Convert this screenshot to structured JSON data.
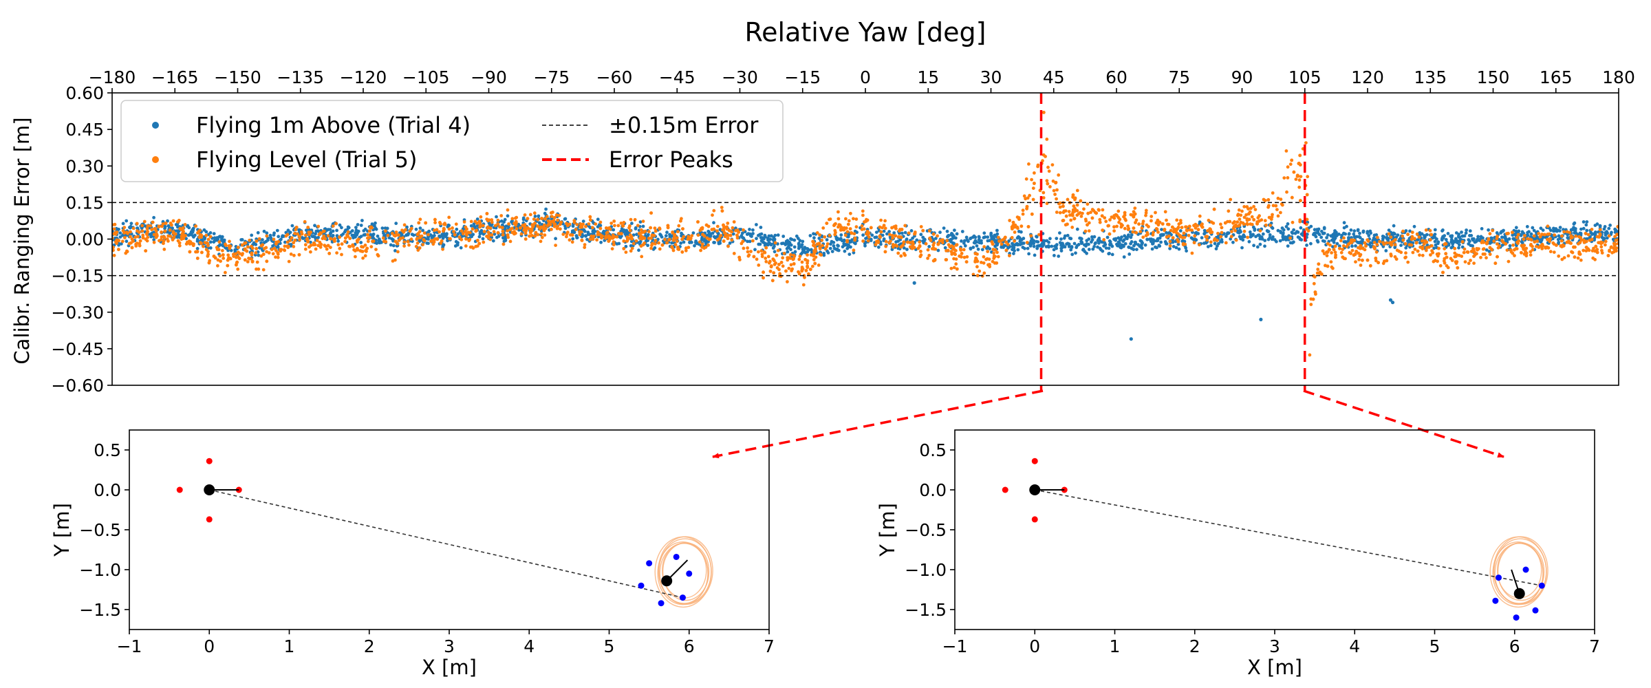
{
  "chart_data": [
    {
      "type": "scatter",
      "title": "Relative Yaw [deg]",
      "xlabel": "",
      "ylabel": "Calibr. Ranging Error [m]",
      "xlim": [
        -180,
        180
      ],
      "ylim": [
        -0.6,
        0.6
      ],
      "xticks": [
        "−180",
        "−165",
        "−150",
        "−135",
        "−120",
        "−105",
        "−90",
        "−75",
        "−60",
        "−45",
        "−30",
        "−15",
        "0",
        "15",
        "30",
        "45",
        "60",
        "75",
        "90",
        "105",
        "120",
        "135",
        "150",
        "165",
        "180"
      ],
      "yticks": [
        "0.60",
        "0.45",
        "0.30",
        "0.15",
        "0.00",
        "−0.15",
        "−0.30",
        "−0.45",
        "−0.60"
      ],
      "legend_position": "top-left",
      "series": [
        {
          "name": "Flying 1m Above (Trial 4)",
          "color": "#1f77b4",
          "trend": [
            [
              -180,
              0.02
            ],
            [
              -165,
              0.04
            ],
            [
              -150,
              -0.04
            ],
            [
              -135,
              0.02
            ],
            [
              -120,
              0.02
            ],
            [
              -105,
              0.0
            ],
            [
              -90,
              0.04
            ],
            [
              -75,
              0.06
            ],
            [
              -60,
              0.02
            ],
            [
              -45,
              0.0
            ],
            [
              -30,
              0.02
            ],
            [
              -15,
              -0.04
            ],
            [
              0,
              0.0
            ],
            [
              15,
              0.0
            ],
            [
              30,
              -0.01
            ],
            [
              45,
              -0.02
            ],
            [
              60,
              -0.02
            ],
            [
              75,
              0.0
            ],
            [
              90,
              0.02
            ],
            [
              105,
              0.02
            ],
            [
              120,
              0.0
            ],
            [
              135,
              0.0
            ],
            [
              150,
              0.0
            ],
            [
              165,
              0.02
            ],
            [
              180,
              0.02
            ]
          ],
          "spread": 0.04,
          "outliers": [
            [
              11.7,
              -0.18
            ],
            [
              63.5,
              -0.41
            ],
            [
              94.5,
              -0.33
            ],
            [
              125.5,
              -0.25
            ],
            [
              126,
              -0.26
            ]
          ]
        },
        {
          "name": "Flying Level (Trial 5)",
          "color": "#ff7f0e",
          "trend": [
            [
              -180,
              0.0
            ],
            [
              -165,
              0.02
            ],
            [
              -150,
              -0.08
            ],
            [
              -135,
              0.0
            ],
            [
              -120,
              -0.02
            ],
            [
              -105,
              0.02
            ],
            [
              -90,
              0.04
            ],
            [
              -75,
              0.06
            ],
            [
              -60,
              0.02
            ],
            [
              -45,
              0.0
            ],
            [
              -33,
              0.04
            ],
            [
              -25,
              -0.08
            ],
            [
              -15,
              -0.12
            ],
            [
              -8,
              0.04
            ],
            [
              0,
              0.02
            ],
            [
              15,
              -0.02
            ],
            [
              28,
              -0.1
            ],
            [
              36,
              0.05
            ],
            [
              43,
              0.3
            ],
            [
              47,
              0.12
            ],
            [
              60,
              0.08
            ],
            [
              75,
              0.02
            ],
            [
              85,
              0.05
            ],
            [
              95,
              0.1
            ],
            [
              103,
              0.2
            ],
            [
              105,
              0.45
            ],
            [
              106,
              -0.25
            ],
            [
              110,
              -0.06
            ],
            [
              120,
              -0.04
            ],
            [
              135,
              -0.02
            ],
            [
              140,
              -0.08
            ],
            [
              150,
              -0.02
            ],
            [
              165,
              -0.02
            ],
            [
              180,
              -0.02
            ]
          ],
          "spread": 0.06
        },
        {
          "name": "±0.15m Error",
          "color": "#000000",
          "style": "dashed",
          "y_values": [
            0.15,
            -0.15
          ]
        },
        {
          "name": "Error Peaks",
          "color": "#ff0000",
          "style": "dashed",
          "x_values": [
            42,
            105
          ]
        }
      ]
    },
    {
      "type": "scatter",
      "xlabel": "X [m]",
      "ylabel": "Y [m]",
      "xlim": [
        -1,
        7
      ],
      "ylim": [
        -1.75,
        0.75
      ],
      "xticks": [
        "−1",
        "0",
        "1",
        "2",
        "3",
        "4",
        "5",
        "6",
        "7"
      ],
      "yticks": [
        "0.5",
        "0.0",
        "−0.5",
        "−1.0",
        "−1.5"
      ],
      "anchors": [
        [
          0,
          0.36
        ],
        [
          -0.37,
          0
        ],
        [
          0.37,
          0
        ],
        [
          0,
          -0.37
        ]
      ],
      "anchor_color": "#ff0000",
      "center": [
        0,
        0
      ],
      "heading_end": [
        0.37,
        0
      ],
      "drone_center": [
        5.72,
        -1.14
      ],
      "drone_heading_end": [
        5.98,
        -0.88
      ],
      "drone_markers": [
        [
          5.5,
          -0.92
        ],
        [
          5.84,
          -0.84
        ],
        [
          6.0,
          -1.05
        ],
        [
          5.4,
          -1.2
        ],
        [
          5.65,
          -1.42
        ],
        [
          5.92,
          -1.35
        ]
      ],
      "marker_color": "#0000ff",
      "line_of_sight": [
        [
          0,
          0
        ],
        [
          5.92,
          -1.35
        ]
      ],
      "trajectory_center": [
        5.94,
        -1.03
      ],
      "trajectory_radius": 0.32
    },
    {
      "type": "scatter",
      "xlabel": "X [m]",
      "ylabel": "Y [m]",
      "xlim": [
        -1,
        7
      ],
      "ylim": [
        -1.75,
        0.75
      ],
      "xticks": [
        "−1",
        "0",
        "1",
        "2",
        "3",
        "4",
        "5",
        "6",
        "7"
      ],
      "yticks": [
        "0.5",
        "0.0",
        "−0.5",
        "−1.0",
        "−1.5"
      ],
      "anchors": [
        [
          0,
          0.36
        ],
        [
          -0.37,
          0
        ],
        [
          0.37,
          0
        ],
        [
          0,
          -0.37
        ]
      ],
      "anchor_color": "#ff0000",
      "center": [
        0,
        0
      ],
      "heading_end": [
        0.37,
        0
      ],
      "drone_center": [
        6.06,
        -1.3
      ],
      "drone_heading_end": [
        5.96,
        -1.0
      ],
      "drone_markers": [
        [
          5.8,
          -1.1
        ],
        [
          6.14,
          -1.0
        ],
        [
          6.34,
          -1.2
        ],
        [
          5.76,
          -1.39
        ],
        [
          6.26,
          -1.51
        ],
        [
          6.02,
          -1.6
        ]
      ],
      "marker_color": "#0000ff",
      "line_of_sight": [
        [
          0,
          0
        ],
        [
          6.34,
          -1.2
        ]
      ],
      "trajectory_center": [
        6.06,
        -1.03
      ],
      "trajectory_radius": 0.32
    }
  ]
}
